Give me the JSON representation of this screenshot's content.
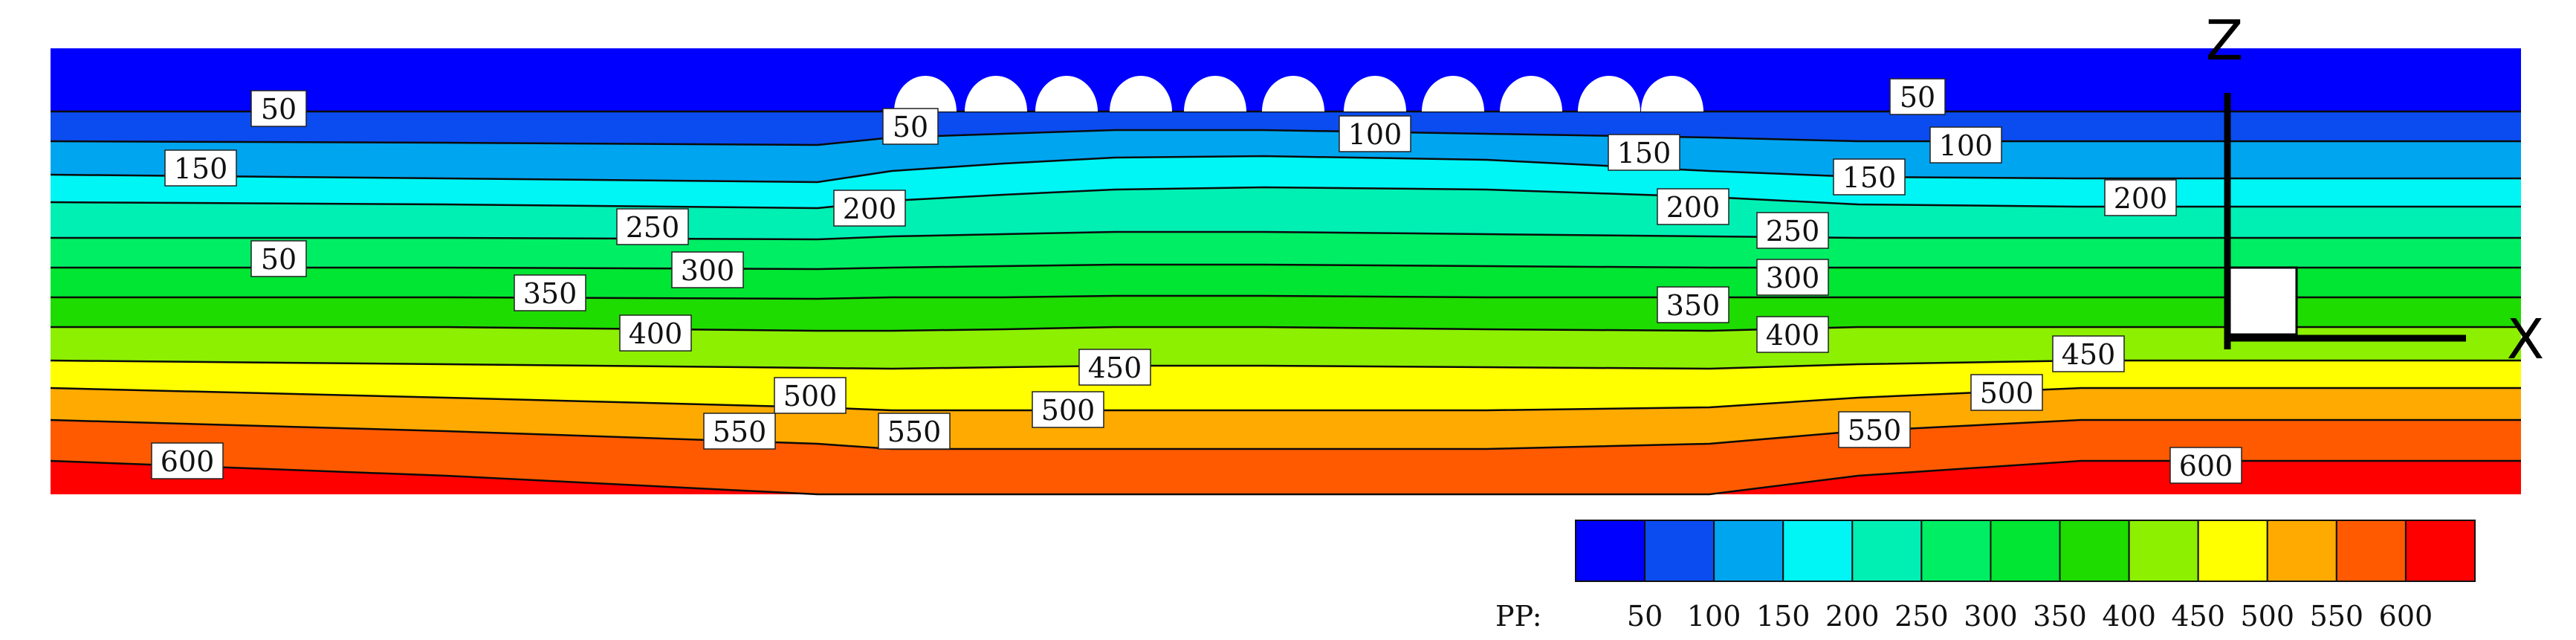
{
  "chart_data": {
    "type": "heatmap",
    "title": "",
    "xlabel": "",
    "ylabel": "",
    "levels": [
      50,
      100,
      150,
      200,
      250,
      300,
      350,
      400,
      450,
      500,
      550,
      600
    ],
    "level_colors": [
      "#0000ff",
      "#0a4cf0",
      "#00a5f0",
      "#00f5f5",
      "#00f0b4",
      "#00ee64",
      "#00e632",
      "#1edc00",
      "#8cf000",
      "#ffff00",
      "#ffaa00",
      "#ff5a00",
      "#ff0000"
    ],
    "colorbar": {
      "label": "PP:",
      "tick_labels": [
        "50",
        "100",
        "150",
        "200",
        "250",
        "300",
        "350",
        "400",
        "450",
        "500",
        "550",
        "600"
      ]
    },
    "contour_labels": [
      {
        "text": "50"
      },
      {
        "text": "150"
      },
      {
        "text": "50"
      },
      {
        "text": "600"
      },
      {
        "text": "50"
      },
      {
        "text": "200"
      },
      {
        "text": "250"
      },
      {
        "text": "300"
      },
      {
        "text": "350"
      },
      {
        "text": "400"
      },
      {
        "text": "500"
      },
      {
        "text": "550"
      },
      {
        "text": "550"
      },
      {
        "text": "450"
      },
      {
        "text": "500"
      },
      {
        "text": "100"
      },
      {
        "text": "150"
      },
      {
        "text": "200"
      },
      {
        "text": "250"
      },
      {
        "text": "300"
      },
      {
        "text": "350"
      },
      {
        "text": "400"
      },
      {
        "text": "50"
      },
      {
        "text": "100"
      },
      {
        "text": "150"
      },
      {
        "text": "200"
      },
      {
        "text": "450"
      },
      {
        "text": "500"
      },
      {
        "text": "550"
      },
      {
        "text": "600"
      }
    ],
    "axes_labels": {
      "z": "Z",
      "x": "X"
    }
  }
}
